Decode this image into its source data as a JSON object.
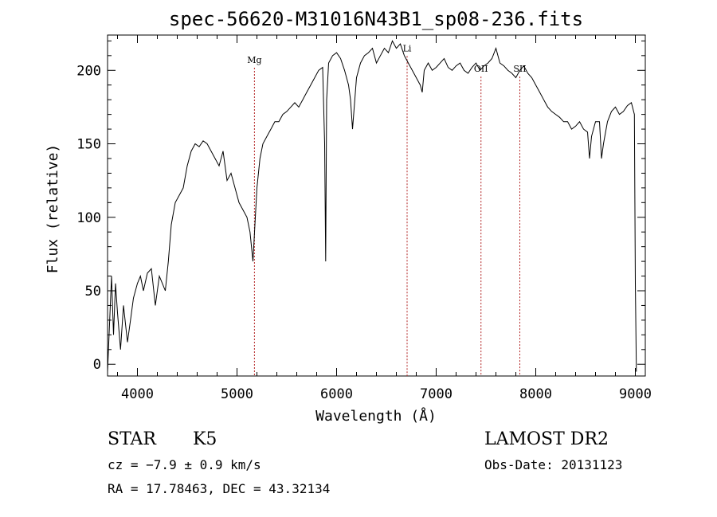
{
  "chart_data": {
    "type": "line",
    "title": "spec-56620-M31016N43B1_sp08-236.fits",
    "xlabel": "Wavelength (Å)",
    "ylabel": "Flux (relative)",
    "xlim": [
      3700,
      9100
    ],
    "ylim": [
      -8,
      224
    ],
    "xticks": [
      4000,
      5000,
      6000,
      7000,
      8000,
      9000
    ],
    "yticks": [
      0,
      50,
      100,
      150,
      200
    ],
    "line_color": "#000000",
    "marker_color": "#b22222",
    "series": [
      {
        "x": [
          3700,
          3740,
          3760,
          3780,
          3800,
          3830,
          3860,
          3900,
          3930,
          3960,
          4000,
          4030,
          4060,
          4100,
          4140,
          4180,
          4220,
          4250,
          4280,
          4310,
          4340,
          4380,
          4420,
          4460,
          4500,
          4540,
          4580,
          4620,
          4660,
          4700,
          4740,
          4780,
          4820,
          4860,
          4900,
          4940,
          4980,
          5020,
          5060,
          5100,
          5130,
          5160,
          5180,
          5200,
          5230,
          5260,
          5300,
          5340,
          5380,
          5420,
          5460,
          5500,
          5540,
          5580,
          5620,
          5660,
          5700,
          5740,
          5780,
          5820,
          5860,
          5880,
          5890,
          5900,
          5920,
          5960,
          6000,
          6040,
          6080,
          6120,
          6140,
          6160,
          6200,
          6240,
          6280,
          6320,
          6360,
          6400,
          6440,
          6480,
          6520,
          6560,
          6600,
          6640,
          6680,
          6720,
          6760,
          6800,
          6840,
          6860,
          6880,
          6920,
          6960,
          7000,
          7040,
          7080,
          7120,
          7160,
          7200,
          7240,
          7280,
          7320,
          7360,
          7400,
          7440,
          7480,
          7520,
          7560,
          7600,
          7640,
          7680,
          7720,
          7760,
          7800,
          7840,
          7880,
          7920,
          7960,
          8000,
          8040,
          8080,
          8120,
          8160,
          8200,
          8240,
          8280,
          8320,
          8360,
          8400,
          8440,
          8480,
          8520,
          8540,
          8560,
          8600,
          8640,
          8660,
          8680,
          8720,
          8760,
          8800,
          8840,
          8880,
          8920,
          8960,
          8990,
          9000,
          9010
        ],
        "y": [
          -5,
          60,
          20,
          55,
          35,
          10,
          40,
          15,
          30,
          45,
          55,
          60,
          50,
          62,
          65,
          40,
          60,
          55,
          50,
          70,
          95,
          110,
          115,
          120,
          135,
          145,
          150,
          148,
          152,
          150,
          145,
          140,
          135,
          145,
          125,
          130,
          120,
          110,
          105,
          100,
          90,
          70,
          95,
          120,
          140,
          150,
          155,
          160,
          165,
          165,
          170,
          172,
          175,
          178,
          175,
          180,
          185,
          190,
          195,
          200,
          202,
          150,
          70,
          180,
          205,
          210,
          212,
          208,
          200,
          190,
          180,
          160,
          195,
          205,
          210,
          212,
          215,
          205,
          210,
          215,
          212,
          220,
          215,
          218,
          210,
          205,
          200,
          195,
          190,
          185,
          200,
          205,
          200,
          202,
          205,
          208,
          202,
          200,
          203,
          205,
          200,
          198,
          202,
          205,
          200,
          203,
          205,
          208,
          215,
          205,
          203,
          200,
          198,
          195,
          200,
          203,
          198,
          195,
          190,
          185,
          180,
          175,
          172,
          170,
          168,
          165,
          165,
          160,
          162,
          165,
          160,
          158,
          140,
          155,
          165,
          165,
          140,
          150,
          165,
          172,
          175,
          170,
          172,
          176,
          178,
          170,
          55,
          -5
        ]
      }
    ],
    "line_labels": [
      {
        "text": "Mg",
        "x": 5175,
        "ytext": 205
      },
      {
        "text": "Li",
        "x": 6708,
        "ytext": 213
      },
      {
        "text": "OII",
        "x": 7450,
        "ytext": 199
      },
      {
        "text": "SII",
        "x": 7840,
        "ytext": 199
      }
    ]
  },
  "footer": {
    "left_line1_type": "STAR",
    "left_line1_class": "K5",
    "left_line2": "cz = −7.9 ± 0.9 km/s",
    "left_line3": "RA =  17.78463, DEC =  43.32134",
    "right_line1": "LAMOST DR2",
    "right_line2": "Obs-Date: 20131123"
  }
}
